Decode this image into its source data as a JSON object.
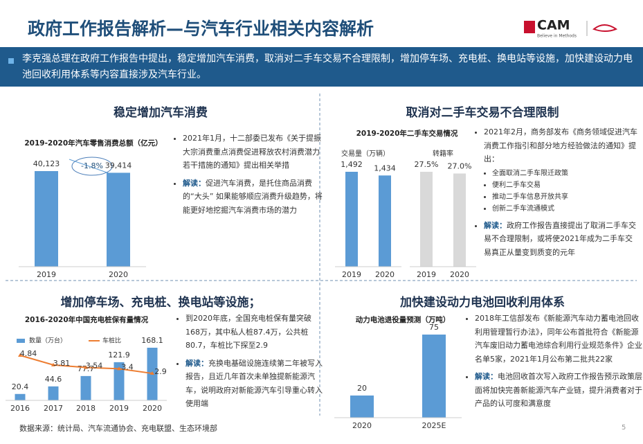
{
  "header": {
    "title": "政府工作报告解析—与汽车行业相关内容解析",
    "logo": "CAM",
    "logo_tagline": "Believe in Methods"
  },
  "intro": "李克强总理在政府工作报告中提出，稳定增加汽车消费，取消对二手车交易不合理限制，增加停车场、充电桩、换电站等设施，加快建设动力电池回收利用体系等内容直接涉及汽车行业。",
  "sections": [
    {
      "heading": "稳定增加汽车消费",
      "bullets": [
        {
          "text": "2021年1月，十二部委已发布《关于提振大宗消费重点消费促进释放农村消费潜力若干措施的通知》提出相关举措"
        },
        {
          "label": "解读：",
          "text": "促进汽车消费，是托住商品消费的“大头” 如果能够顺应消费升级趋势，将能更好地挖掘汽车消费市场的潜力"
        }
      ]
    },
    {
      "heading": "取消对二手车交易不合理限制",
      "bullets": [
        {
          "text": "2021年2月，商务部发布《商务领域促进汽车消费工作指引和部分地方经验做法的通知》提出：",
          "items": [
            "全面取消二手车限迁政策",
            "便利二手车交易",
            "推动二手车信息开放共享",
            "创新二手车流通模式"
          ]
        },
        {
          "label": "解读：",
          "text": "政府工作报告直接提出了取消二手车交易不合理限制，或将使2021年成为二手车交易真正从量变到质变的元年"
        }
      ]
    },
    {
      "heading": "增加停车场、充电桩、换电站等设施；",
      "bullets": [
        {
          "text": "到2020年底，全国充电桩保有量突破168万，其中私人桩87.4万，公共桩80.7，车桩比下探至2.9"
        },
        {
          "label": "解读：",
          "text": "充换电基础设施连续第二年被写入报告，且近几年首次未单独提新能源汽车，说明政府对新能源汽车引导重心转入使用端"
        }
      ]
    },
    {
      "heading": "加快建设动力电池回收利用体系",
      "bullets": [
        {
          "text": "2018年工信部发布《新能源汽车动力蓄电池回收利用管理暂行办法》，同年公布首批符合《新能源汽车废旧动力蓄电池综合利用行业规范条件》企业名单5家，2021年1月公布第二批共22家"
        },
        {
          "label": "解读：",
          "text": "电池回收首次写入政府工作报告预示政策层面将加快完善新能源汽车产业链，提升消费者对于产品的认可度和满意度"
        }
      ]
    }
  ],
  "chart_data": [
    {
      "type": "bar",
      "title": "2019-2020年汽车零售消费总额（亿元）",
      "categories": [
        "2019",
        "2020"
      ],
      "values": [
        40123,
        39414
      ],
      "value_labels": [
        "40,123",
        "39,414"
      ],
      "color": "#5b9bd5",
      "annotation": "-1.8%"
    },
    {
      "type": "bar",
      "title": "2019-2020年二手车交易情况",
      "categories": [
        "2019",
        "2020"
      ],
      "series": [
        {
          "name": "交易量（万辆）",
          "color": "#5b9bd5",
          "values": [
            1492,
            1434
          ],
          "value_labels": [
            "1,492",
            "1,434"
          ]
        },
        {
          "name": "转籍率",
          "color": "#d9d9d9",
          "values": [
            27.5,
            27.0
          ],
          "value_labels": [
            "27.5%",
            "27.0%"
          ]
        }
      ]
    },
    {
      "type": "bar",
      "title": "2016-2020年中国充电桩保有量情况",
      "categories": [
        "2016",
        "2017",
        "2018",
        "2019",
        "2020"
      ],
      "series": [
        {
          "name": "数量（万台）",
          "type": "bar",
          "color": "#5b9bd5",
          "values": [
            20.4,
            44.6,
            77.7,
            121.9,
            168.1
          ]
        },
        {
          "name": "车桩比",
          "type": "line",
          "axis": "y2",
          "color": "#ed7d31",
          "values": [
            4.84,
            3.81,
            3.54,
            3.4,
            2.9
          ]
        }
      ]
    },
    {
      "type": "bar",
      "title": "动力电池退役量预测（万吨）",
      "categories": [
        "2020",
        "2025E"
      ],
      "values": [
        20,
        75
      ],
      "color": "#5b9bd5"
    }
  ],
  "footer": {
    "source": "数据来源：统计局、汽车流通协会、充电联盟、生态环境部",
    "page": "5"
  }
}
